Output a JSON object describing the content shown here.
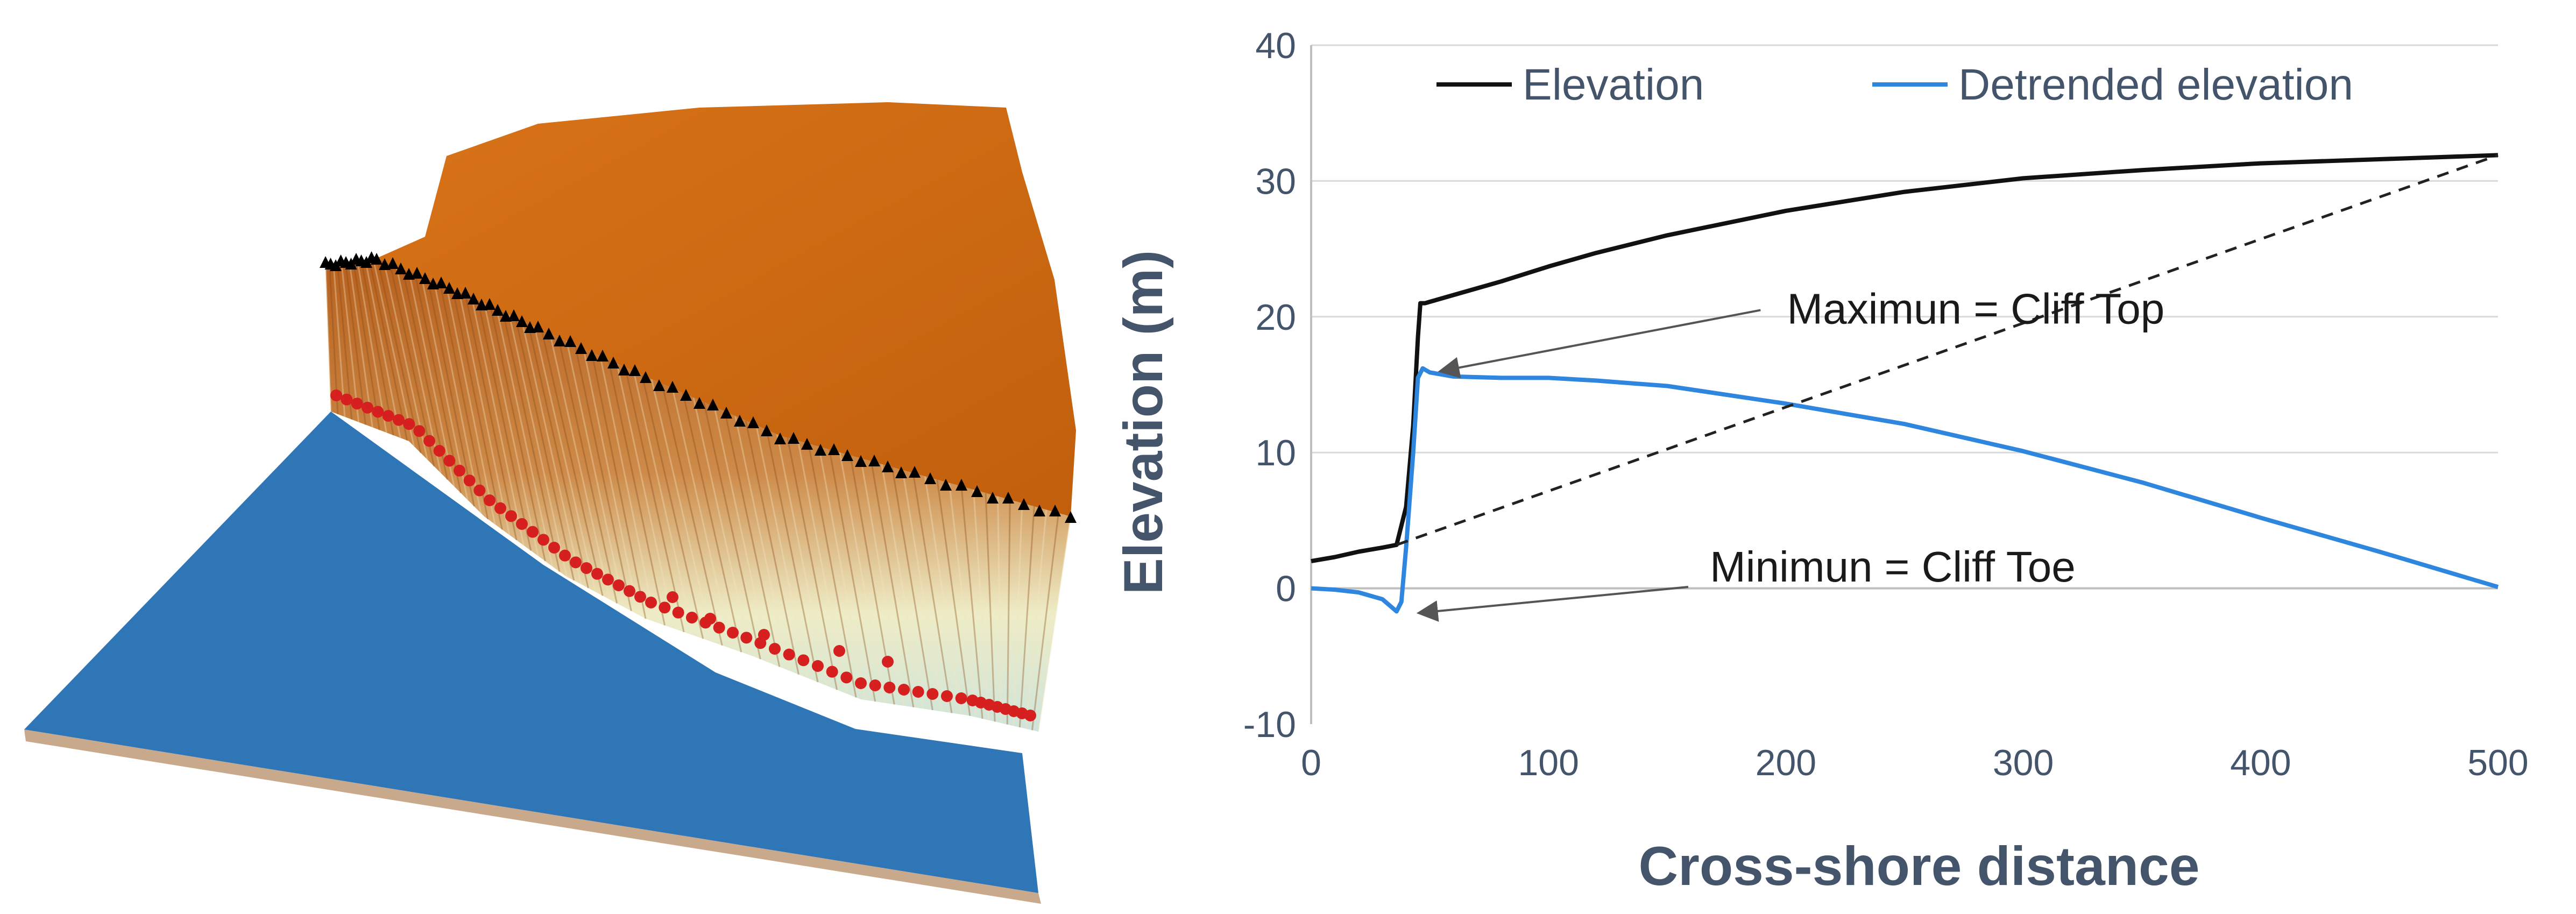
{
  "chart_data": {
    "type": "line",
    "title": "",
    "xlabel": "Cross-shore distance",
    "ylabel": "Elevation (m)",
    "xlim": [
      0,
      500
    ],
    "ylim": [
      -10,
      40
    ],
    "xticks": [
      "0",
      "100",
      "200",
      "300",
      "400",
      "500"
    ],
    "yticks": [
      "-10",
      "0",
      "10",
      "20",
      "30",
      "40"
    ],
    "grid": "horizontal",
    "legend_position": "top",
    "series": [
      {
        "name": "Elevation",
        "color": "#111111",
        "x": [
          0,
          10,
          20,
          30,
          36,
          40,
          43,
          45,
          46,
          48,
          50,
          60,
          80,
          100,
          120,
          150,
          200,
          250,
          300,
          350,
          400,
          450,
          500
        ],
        "y": [
          2.0,
          2.3,
          2.7,
          3.0,
          3.2,
          6.0,
          12.0,
          18.5,
          21.0,
          21.0,
          21.1,
          21.6,
          22.6,
          23.7,
          24.7,
          26.0,
          27.8,
          29.2,
          30.2,
          30.8,
          31.3,
          31.6,
          31.9
        ]
      },
      {
        "name": "Detrended elevation",
        "color": "#2e86de",
        "x": [
          0,
          10,
          20,
          30,
          36,
          38,
          40,
          43,
          45,
          47,
          50,
          60,
          80,
          100,
          120,
          150,
          200,
          250,
          300,
          350,
          400,
          450,
          500
        ],
        "y": [
          0.0,
          -0.1,
          -0.3,
          -0.8,
          -1.7,
          -1.0,
          3.0,
          10.0,
          15.5,
          16.2,
          15.9,
          15.6,
          15.5,
          15.5,
          15.3,
          14.9,
          13.6,
          12.1,
          10.1,
          7.8,
          5.2,
          2.7,
          0.1
        ]
      },
      {
        "name": "",
        "style": "dashed",
        "color": "#222222",
        "x": [
          36,
          500
        ],
        "y": [
          3.2,
          31.9
        ]
      }
    ],
    "annotations": [
      {
        "text": "Maximun = Cliff Top",
        "x": 280,
        "y": 19.5,
        "arrow_to": [
          52,
          16.3
        ]
      },
      {
        "text": "Minimun = Cliff Toe",
        "x": 245,
        "y": 0.5,
        "arrow_to": [
          43,
          -1.5
        ]
      }
    ]
  },
  "figure_left": {
    "description_icon": "terrain-3d-icon",
    "colors": {
      "cliff_top_surface": "#cc6611",
      "sea": "#2f76b6",
      "cliff_top_markers": "#000000",
      "cliff_toe_markers": "#d62020"
    }
  }
}
